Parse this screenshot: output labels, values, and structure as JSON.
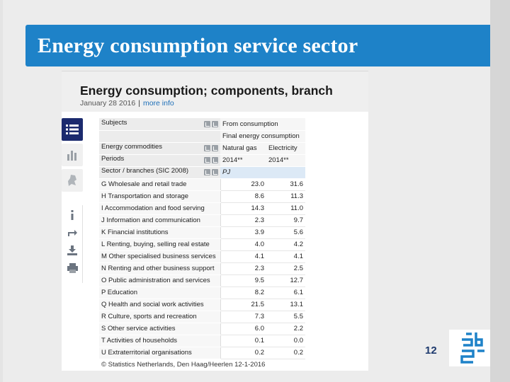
{
  "slide": {
    "title": "Energy consumption service sector",
    "page_number": "12"
  },
  "statline": {
    "title": "Energy consumption; components, branch",
    "date": "January 28 2016",
    "more_info": "more info",
    "header_rows": [
      {
        "label": "Subjects",
        "c1": "From consumption",
        "c2": "",
        "controls": true
      },
      {
        "label": "",
        "c1": "Final energy consumption",
        "c2": "",
        "controls": false
      },
      {
        "label": "Energy commodities",
        "c1": "Natural gas",
        "c2": "Electricity",
        "controls": true
      },
      {
        "label": "Periods",
        "c1": "2014**",
        "c2": "2014**",
        "controls": true
      },
      {
        "label": "Sector / branches (SIC 2008)",
        "c1": "PJ",
        "c2": "",
        "controls": true
      }
    ],
    "rows": [
      {
        "label": "G Wholesale and retail trade",
        "gas": "23.0",
        "elec": "31.6"
      },
      {
        "label": "H Transportation and storage",
        "gas": "8.6",
        "elec": "11.3"
      },
      {
        "label": "I Accommodation and food serving",
        "gas": "14.3",
        "elec": "11.0"
      },
      {
        "label": "J Information and communication",
        "gas": "2.3",
        "elec": "9.7"
      },
      {
        "label": "K Financial institutions",
        "gas": "3.9",
        "elec": "5.6"
      },
      {
        "label": "L Renting, buying, selling real estate",
        "gas": "4.0",
        "elec": "4.2"
      },
      {
        "label": "M Other specialised business services",
        "gas": "4.1",
        "elec": "4.1"
      },
      {
        "label": "N Renting and other business support",
        "gas": "2.3",
        "elec": "2.5"
      },
      {
        "label": "O Public administration and services",
        "gas": "9.5",
        "elec": "12.7"
      },
      {
        "label": "P Education",
        "gas": "8.2",
        "elec": "6.1"
      },
      {
        "label": "Q Health and social work activities",
        "gas": "21.5",
        "elec": "13.1"
      },
      {
        "label": "R Culture, sports and recreation",
        "gas": "7.3",
        "elec": "5.5"
      },
      {
        "label": "S Other service activities",
        "gas": "6.0",
        "elec": "2.2"
      },
      {
        "label": "T Activities of households",
        "gas": "0.1",
        "elec": "0.0"
      },
      {
        "label": "U Extraterritorial organisations",
        "gas": "0.2",
        "elec": "0.2"
      }
    ],
    "footer": "© Statistics Netherlands, Den Haag/Heerlen 12-1-2016",
    "side_buttons": [
      "table-icon",
      "chart-icon",
      "map-icon"
    ],
    "tools": [
      "info-icon",
      "share-icon",
      "download-icon",
      "print-icon"
    ]
  },
  "colors": {
    "title_bar": "#1e82c8",
    "active_tab": "#1b2a6e",
    "unit_cell": "#dce9f6",
    "logo": "#1e82c8"
  }
}
